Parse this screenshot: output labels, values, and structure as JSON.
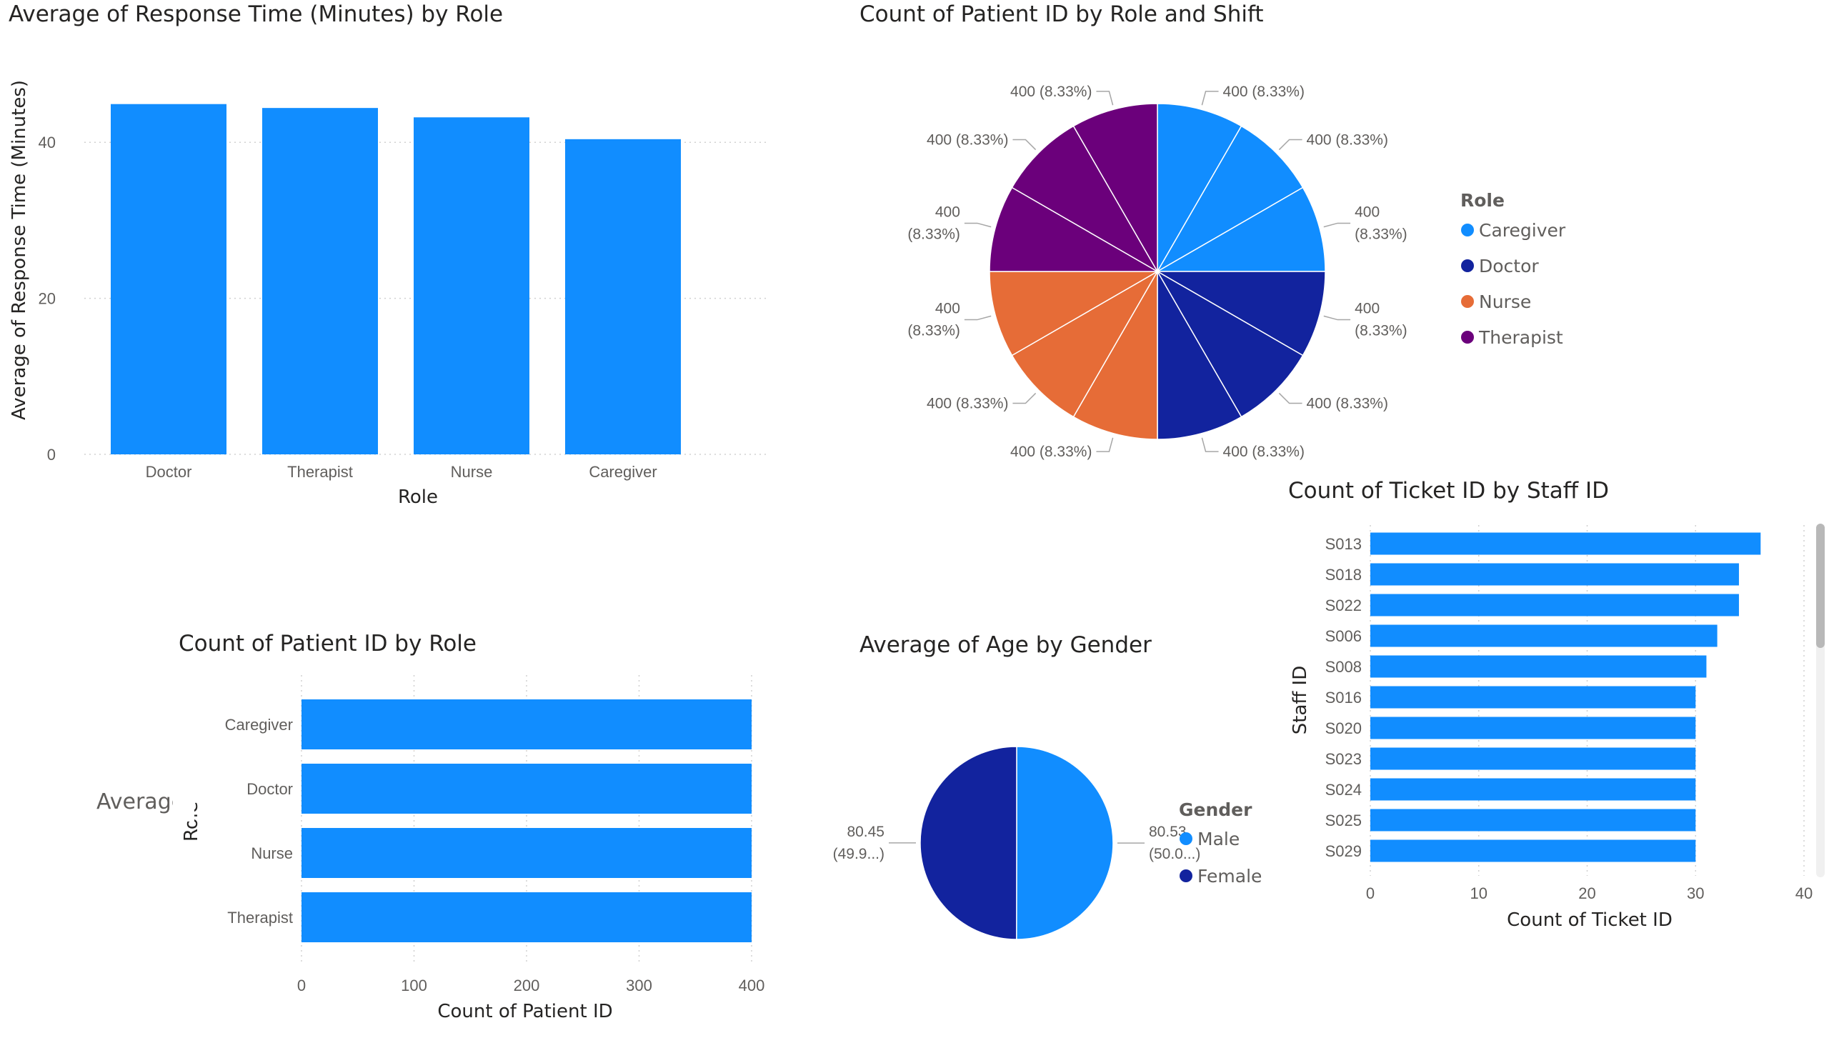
{
  "colors": {
    "blue": "#118DFF",
    "navy": "#12239E",
    "orange": "#E66C37",
    "purple": "#6B007B",
    "scroll_track": "#f0f0f0",
    "scroll_thumb": "#b8b8b8"
  },
  "overflow_text": "Average",
  "chart_data": [
    {
      "id": "response-time-by-role",
      "type": "bar",
      "title": "Average of Response Time (Minutes) by Role",
      "xlabel": "Role",
      "ylabel": "Average of Response Time (Minutes)",
      "categories": [
        "Doctor",
        "Therapist",
        "Nurse",
        "Caregiver"
      ],
      "values": [
        44.9,
        44.4,
        43.2,
        40.4
      ],
      "ylim": [
        0,
        50
      ],
      "yticks": [
        0,
        20,
        40
      ],
      "grid": true
    },
    {
      "id": "patients-by-role-shift",
      "type": "pie",
      "title": "Count of Patient ID by Role and Shift",
      "legend_title": "Role",
      "legend_position": "right",
      "legend": [
        {
          "name": "Caregiver",
          "color": "#118DFF"
        },
        {
          "name": "Doctor",
          "color": "#12239E"
        },
        {
          "name": "Nurse",
          "color": "#E66C37"
        },
        {
          "name": "Therapist",
          "color": "#6B007B"
        }
      ],
      "slices": [
        {
          "role": "Caregiver",
          "value": 400,
          "label": [
            "400 (8.33%)"
          ]
        },
        {
          "role": "Caregiver",
          "value": 400,
          "label": [
            "400 (8.33%)"
          ]
        },
        {
          "role": "Caregiver",
          "value": 400,
          "label": [
            "400",
            "(8.33%)"
          ]
        },
        {
          "role": "Doctor",
          "value": 400,
          "label": [
            "400",
            "(8.33%)"
          ]
        },
        {
          "role": "Doctor",
          "value": 400,
          "label": [
            "400 (8.33%)"
          ]
        },
        {
          "role": "Doctor",
          "value": 400,
          "label": [
            "400 (8.33%)"
          ]
        },
        {
          "role": "Nurse",
          "value": 400,
          "label": [
            "400 (8.33%)"
          ]
        },
        {
          "role": "Nurse",
          "value": 400,
          "label": [
            "400 (8.33%)"
          ]
        },
        {
          "role": "Nurse",
          "value": 400,
          "label": [
            "400",
            "(8.33%)"
          ]
        },
        {
          "role": "Therapist",
          "value": 400,
          "label": [
            "400",
            "(8.33%)"
          ]
        },
        {
          "role": "Therapist",
          "value": 400,
          "label": [
            "400 (8.33%)"
          ]
        },
        {
          "role": "Therapist",
          "value": 400,
          "label": [
            "400 (8.33%)"
          ]
        }
      ]
    },
    {
      "id": "tickets-by-staff",
      "type": "bar",
      "orientation": "horizontal",
      "title": "Count of Ticket ID by Staff ID",
      "xlabel": "Count of Ticket ID",
      "ylabel": "Staff ID",
      "categories": [
        "S013",
        "S018",
        "S022",
        "S006",
        "S008",
        "S016",
        "S020",
        "S023",
        "S024",
        "S025",
        "S029"
      ],
      "values": [
        36,
        34,
        34,
        32,
        31,
        30,
        30,
        30,
        30,
        30,
        30
      ],
      "xlim": [
        0,
        40
      ],
      "xticks": [
        0,
        10,
        20,
        30,
        40
      ],
      "grid": true
    },
    {
      "id": "patients-by-role",
      "type": "bar",
      "orientation": "horizontal",
      "title": "Count of Patient ID by Role",
      "xlabel": "Count of Patient ID",
      "ylabel": "Role",
      "categories": [
        "Caregiver",
        "Doctor",
        "Nurse",
        "Therapist"
      ],
      "values": [
        400,
        400,
        400,
        400
      ],
      "xlim": [
        0,
        400
      ],
      "xticks": [
        0,
        100,
        200,
        300,
        400
      ],
      "grid": true
    },
    {
      "id": "age-by-gender",
      "type": "pie",
      "title": "Average of Age by Gender",
      "legend_title": "Gender",
      "legend_position": "right",
      "legend": [
        {
          "name": "Male",
          "color": "#118DFF"
        },
        {
          "name": "Female",
          "color": "#12239E"
        }
      ],
      "slices": [
        {
          "gender": "Male",
          "value": 80.53,
          "label": [
            "80.53",
            "(50.0...)"
          ]
        },
        {
          "gender": "Female",
          "value": 80.45,
          "label": [
            "80.45",
            "(49.9...)"
          ]
        }
      ]
    }
  ]
}
